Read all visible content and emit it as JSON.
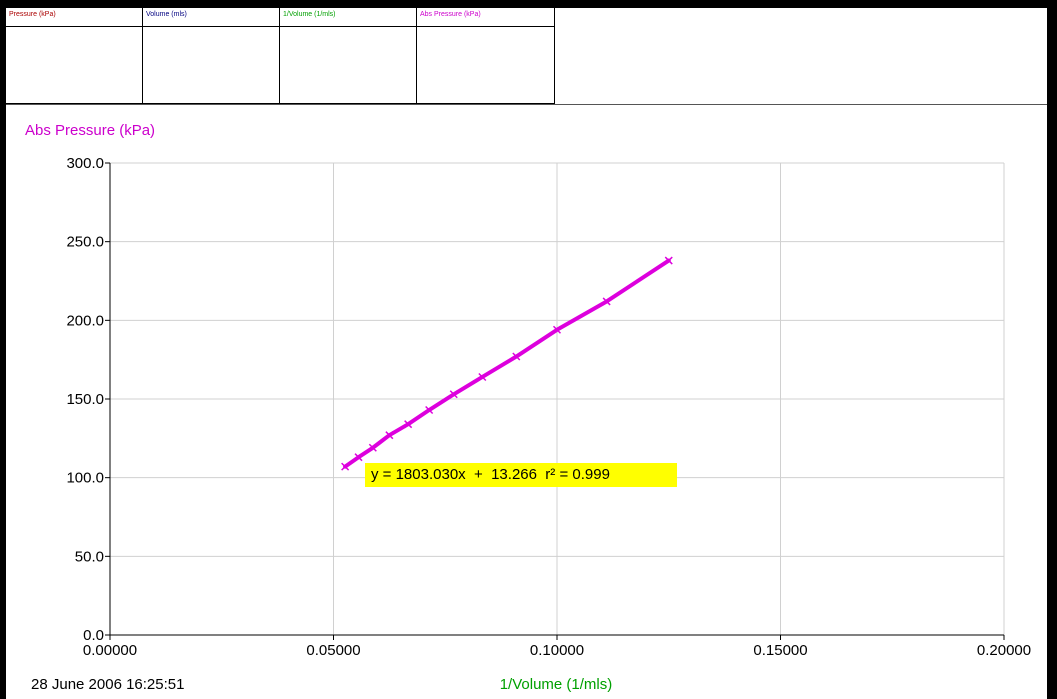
{
  "data_table": {
    "columns": [
      {
        "label": "Pressure (kPa)",
        "color": "#aa0000"
      },
      {
        "label": "Volume (mls)",
        "color": "#000080"
      },
      {
        "label": "1/Volume (1/mls)",
        "color": "#00a000"
      },
      {
        "label": "Abs Pressure (kPa)",
        "color": "#cc00cc"
      }
    ]
  },
  "footer": {
    "timestamp": "28 June 2006  16:25:51"
  },
  "fit": {
    "equation": "y = 1803.030x  +  13.266  r² = 0.999"
  },
  "colors": {
    "series": "#dd00dd",
    "y_title": "#cc00cc",
    "x_title": "#00a000",
    "fit_box": "#ffff00",
    "grid": "#d0d0d0"
  },
  "chart_data": {
    "type": "line",
    "title": "",
    "ylabel": "Abs Pressure (kPa)",
    "xlabel": "1/Volume (1/mls)",
    "xlim": [
      0,
      0.2
    ],
    "ylim": [
      0,
      300
    ],
    "x_ticks": [
      "0.00000",
      "0.05000",
      "0.10000",
      "0.15000",
      "0.20000"
    ],
    "y_ticks": [
      "0.0",
      "50.0",
      "100.0",
      "150.0",
      "200.0",
      "250.0",
      "300.0"
    ],
    "grid": true,
    "series": [
      {
        "x": [
          0.0526,
          0.0556,
          0.0588,
          0.0625,
          0.0667,
          0.0714,
          0.0769,
          0.0833,
          0.0909,
          0.1,
          0.1111,
          0.125
        ],
        "y": [
          107,
          113,
          119,
          127,
          134,
          143,
          153,
          164,
          177,
          194,
          212,
          238
        ]
      }
    ]
  }
}
